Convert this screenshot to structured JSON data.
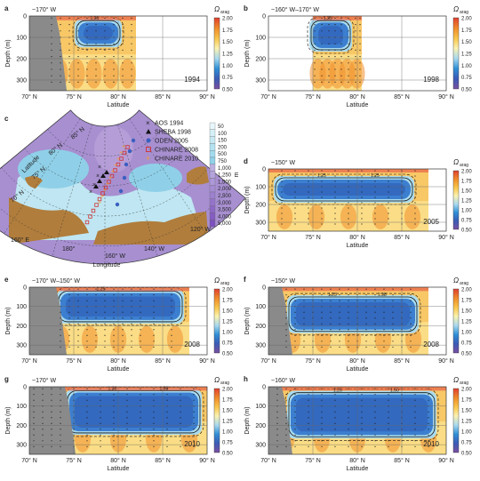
{
  "chart_data": [
    {
      "id": "a",
      "type": "heatmap",
      "panel_letter": "a",
      "section": "~170° W",
      "year": "1994",
      "omega_label": "Ω",
      "omega_sub": "arag",
      "xlabel": "Latitude",
      "ylabel": "Depth (m)",
      "xlim": [
        70,
        90
      ],
      "ylim": [
        0,
        350
      ],
      "x_ticks": [
        "70° N",
        "75° N",
        "80° N",
        "85° N",
        "90° N"
      ],
      "y_ticks": [
        "0",
        "100",
        "200",
        "300"
      ],
      "colorbar_ticks": [
        "2.00",
        "1.75",
        "1.50",
        "1.25",
        "1.00",
        "0.75",
        "0.50"
      ],
      "data_lat_range": [
        72.5,
        82
      ],
      "shelf_lat": 73,
      "undersat_core": {
        "lat": [
          75.5,
          80
        ],
        "depth": [
          30,
          130
        ]
      },
      "stations": [
        72.5,
        73.5,
        74.5,
        75.5,
        76.5,
        77.5,
        78.5,
        79.5,
        80.5,
        81.5
      ],
      "contours": [
        "1.25"
      ]
    },
    {
      "id": "b",
      "type": "heatmap",
      "panel_letter": "b",
      "section": "~160° W–170° W",
      "year": "1998",
      "omega_label": "Ω",
      "omega_sub": "arag",
      "xlabel": "Latitude",
      "ylabel": "Depth (m)",
      "xlim": [
        70,
        90
      ],
      "ylim": [
        0,
        350
      ],
      "x_ticks": [
        "70° N",
        "75° N",
        "80° N",
        "85° N",
        "90° N"
      ],
      "y_ticks": [
        "0",
        "100",
        "200",
        "300"
      ],
      "colorbar_ticks": [
        "2.00",
        "1.75",
        "1.50",
        "1.25",
        "1.00",
        "0.75",
        "0.50"
      ],
      "data_lat_range": [
        75,
        80.5
      ],
      "shelf_lat": null,
      "undersat_core": {
        "lat": [
          75,
          79
        ],
        "depth": [
          30,
          150
        ]
      },
      "stations": [
        75.2,
        76,
        76.8,
        77.5,
        78.2,
        79,
        79.8,
        80.3
      ],
      "contours": [
        "1.25"
      ]
    },
    {
      "id": "c",
      "type": "map",
      "panel_letter": "c",
      "xlabel": "Longitude",
      "ylabel": "Latitude",
      "lat_labels": [
        "85° N",
        "80° N",
        "75° N",
        "70° N"
      ],
      "lon_labels": [
        "160° E",
        "180°",
        "160° W",
        "140° W",
        "120° W"
      ],
      "depth_unit": "m",
      "depth_scale": [
        "50",
        "100",
        "150",
        "200",
        "500",
        "750",
        "1,000",
        "1,250",
        "1,500",
        "2,000",
        "2,500",
        "3,000",
        "3,500",
        "4,000",
        "5,000"
      ],
      "legend": [
        {
          "marker": "x",
          "label": "AOS 1994"
        },
        {
          "marker": "triangle",
          "label": "SHEBA 1998"
        },
        {
          "marker": "circle",
          "label": "ODEN 2005"
        },
        {
          "marker": "square",
          "label": "CHINARE 2008"
        },
        {
          "marker": "plus",
          "label": "CHINARE 2010"
        }
      ]
    },
    {
      "id": "d",
      "type": "heatmap",
      "panel_letter": "d",
      "section": "~150° W",
      "year": "2005",
      "omega_label": "Ω",
      "omega_sub": "arag",
      "xlabel": "Latitude",
      "ylabel": "Depth (m)",
      "xlim": [
        70,
        90
      ],
      "ylim": [
        0,
        350
      ],
      "x_ticks": [
        "70° N",
        "75° N",
        "80° N",
        "85° N",
        "90° N"
      ],
      "y_ticks": [
        "0",
        "100",
        "200",
        "300"
      ],
      "colorbar_ticks": [
        "2.00",
        "1.75",
        "1.50",
        "1.25",
        "1.00",
        "0.75",
        "0.50"
      ],
      "data_lat_range": [
        70,
        88
      ],
      "shelf_lat": null,
      "undersat_core": {
        "lat": [
          71,
          86
        ],
        "depth": [
          60,
          170
        ]
      },
      "stations": [
        71.5,
        73,
        74.5,
        76,
        77.5,
        79,
        80.5,
        82,
        83.5,
        85,
        86.5
      ],
      "contours": [
        "1.25",
        "1.25"
      ]
    },
    {
      "id": "e",
      "type": "heatmap",
      "panel_letter": "e",
      "section": "~170° W–150° W",
      "year": "2008",
      "omega_label": "Ω",
      "omega_sub": "arag",
      "xlabel": "Latitude",
      "ylabel": "Depth (m)",
      "xlim": [
        70,
        90
      ],
      "ylim": [
        0,
        350
      ],
      "x_ticks": [
        "70° N",
        "75° N",
        "80° N",
        "85° N",
        "90° N"
      ],
      "y_ticks": [
        "0",
        "100",
        "200",
        "300"
      ],
      "colorbar_ticks": [
        "2.00",
        "1.75",
        "1.50",
        "1.25",
        "1.00",
        "0.75",
        "0.50"
      ],
      "data_lat_range": [
        72,
        88
      ],
      "shelf_lat": 73,
      "undersat_core": {
        "lat": [
          73.5,
          87
        ],
        "depth": [
          30,
          170
        ]
      },
      "stations": [
        73.5,
        74.5,
        75.5,
        76.5,
        77.5,
        78.5,
        79.5,
        80.5,
        81.5,
        82.5,
        84,
        86
      ],
      "contours": [
        "1.25"
      ]
    },
    {
      "id": "f",
      "type": "heatmap",
      "panel_letter": "f",
      "section": "~150° W",
      "year": "2008",
      "omega_label": "Ω",
      "omega_sub": "arag",
      "xlabel": "Latitude",
      "ylabel": "Depth (m)",
      "xlim": [
        70,
        90
      ],
      "ylim": [
        0,
        350
      ],
      "x_ticks": [
        "70° N",
        "75° N",
        "80° N",
        "85° N",
        "90° N"
      ],
      "y_ticks": [
        "0",
        "100",
        "200",
        "300"
      ],
      "colorbar_ticks": [
        "2.00",
        "1.75",
        "1.50",
        "1.25",
        "1.00",
        "0.75",
        "0.50"
      ],
      "data_lat_range": [
        71,
        88
      ],
      "shelf_lat": 71.5,
      "undersat_core": {
        "lat": [
          72.5,
          86.5
        ],
        "depth": [
          60,
          220
        ]
      },
      "stations": [
        72,
        73,
        74,
        75,
        76,
        77,
        78,
        79,
        80,
        81,
        82,
        83,
        84,
        85,
        86
      ],
      "contours": [
        "1.25",
        "1.25"
      ]
    },
    {
      "id": "g",
      "type": "heatmap",
      "panel_letter": "g",
      "section": "~170° W",
      "year": "2010",
      "omega_label": "Ω",
      "omega_sub": "arag",
      "xlabel": "Latitude",
      "ylabel": "Depth (m)",
      "xlim": [
        70,
        90
      ],
      "ylim": [
        0,
        350
      ],
      "x_ticks": [
        "70° N",
        "75° N",
        "80° N",
        "85° N",
        "90° N"
      ],
      "y_ticks": [
        "0",
        "100",
        "200",
        "300"
      ],
      "colorbar_ticks": [
        "2.00",
        "1.75",
        "1.50",
        "1.25",
        "1.00",
        "0.75",
        "0.50"
      ],
      "data_lat_range": [
        70,
        90
      ],
      "shelf_lat": 74,
      "undersat_core": {
        "lat": [
          74.5,
          89
        ],
        "depth": [
          30,
          230
        ]
      },
      "stations": [
        70.5,
        71.5,
        72.5,
        73.5,
        75,
        76.5,
        78,
        79.5,
        81,
        82.5,
        84,
        85.5,
        87,
        88.5
      ],
      "contours": [
        "1.25",
        "1.50"
      ]
    },
    {
      "id": "h",
      "type": "heatmap",
      "panel_letter": "h",
      "section": "~160° W",
      "year": "2010",
      "omega_label": "Ω",
      "omega_sub": "arag",
      "xlabel": "Latitude",
      "ylabel": "Depth (m)",
      "xlim": [
        70,
        90
      ],
      "ylim": [
        0,
        350
      ],
      "x_ticks": [
        "70° N",
        "75° N",
        "80° N",
        "85° N",
        "90° N"
      ],
      "y_ticks": [
        "0",
        "100",
        "200",
        "300"
      ],
      "colorbar_ticks": [
        "2.00",
        "1.75",
        "1.50",
        "1.25",
        "1.00",
        "0.75",
        "0.50"
      ],
      "data_lat_range": [
        70,
        90
      ],
      "shelf_lat": 71.5,
      "undersat_core": {
        "lat": [
          72.5,
          88.5
        ],
        "depth": [
          40,
          250
        ]
      },
      "stations": [
        71,
        72,
        73,
        74.5,
        76,
        77.5,
        79,
        80.5,
        82,
        83.5,
        85,
        86.5,
        88
      ],
      "contours": [
        "1.25",
        "1.50"
      ]
    }
  ],
  "colors": {
    "colorbar_stops": [
      "#7a4fa0",
      "#3b5bb5",
      "#2f8fd6",
      "#a8d9ee",
      "#fbf2b0",
      "#f8c44a",
      "#f08a2a",
      "#e04030"
    ],
    "land": "#8a8a8a",
    "shelf_dark": "#555555",
    "map_land": "#b07d3c",
    "map_shallow": "#bfe6f2",
    "map_deep": "#a78fd0"
  }
}
